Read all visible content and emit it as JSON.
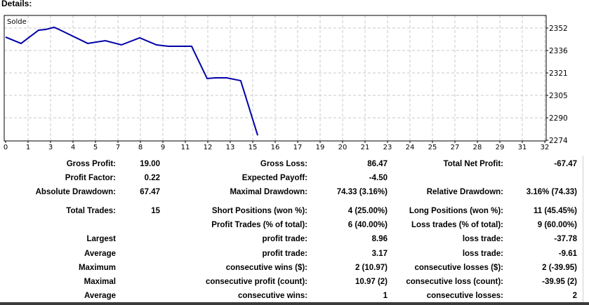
{
  "header": {
    "title": "Details:"
  },
  "chart_data": {
    "type": "line",
    "title": "Solde",
    "x_tick_labels": [
      "0",
      "1",
      "3",
      "4",
      "5",
      "7",
      "8",
      "9",
      "11",
      "12",
      "13",
      "15",
      "16",
      "17",
      "19",
      "20",
      "21",
      "23",
      "24",
      "25",
      "27",
      "28",
      "29",
      "31",
      "32"
    ],
    "y_tick_labels": [
      "2352",
      "2336",
      "2321",
      "2305",
      "2290",
      "2274"
    ],
    "xlim": [
      0,
      32
    ],
    "ylim": [
      2274,
      2352
    ],
    "grid": true,
    "series": [
      {
        "name": "Solde",
        "color": "#0000a8",
        "x": [
          0,
          0.92,
          1.96,
          2.38,
          2.88,
          3.09,
          4.89,
          5.93,
          6.89,
          7.98,
          8.98,
          9.69,
          11.07,
          11.99,
          12.49,
          13.16,
          13.99,
          15.0
        ],
        "y": [
          2345.7,
          2341.3,
          2350.5,
          2351,
          2352.5,
          2351.5,
          2341.3,
          2343.2,
          2340.3,
          2345.2,
          2340.3,
          2339.3,
          2339.3,
          2316.9,
          2317.4,
          2317.4,
          2315.4,
          2277.4
        ]
      }
    ]
  },
  "stats": [
    {
      "label": "Gross Profit:",
      "value": "19.00"
    },
    {
      "label": "Gross Loss:",
      "value": "86.47"
    },
    {
      "label": "Total Net Profit:",
      "value": "-67.47"
    },
    {
      "label": "Profit Factor:",
      "value": "0.22"
    },
    {
      "label": "Expected Payoff:",
      "value": "-4.50"
    },
    {
      "label": "Absolute Drawdown:",
      "value": "67.47"
    },
    {
      "label": "Maximal Drawdown:",
      "value": "74.33 (3.16%)"
    },
    {
      "label": "Relative Drawdown:",
      "value": "3.16% (74.33)"
    },
    {
      "label": "Total Trades:",
      "value": "15"
    },
    {
      "label": "Short Positions (won %):",
      "value": "4 (25.00%)"
    },
    {
      "label": "Long Positions (won %):",
      "value": "11 (45.45%)"
    },
    {
      "label": "Profit Trades (% of total):",
      "value": "6 (40.00%)"
    },
    {
      "label": "Loss trades (% of total):",
      "value": "9 (60.00%)"
    },
    {
      "label": "Largest"
    },
    {
      "label": "profit trade:",
      "value": "8.96"
    },
    {
      "label": "loss trade:",
      "value": "-37.78"
    },
    {
      "label": "Average"
    },
    {
      "label": "profit trade:",
      "value": "3.17"
    },
    {
      "label": "loss trade:",
      "value": "-9.61"
    },
    {
      "label": "Maximum"
    },
    {
      "label": "consecutive wins ($):",
      "value": "2 (10.97)"
    },
    {
      "label": "consecutive losses ($):",
      "value": "2 (-39.95)"
    },
    {
      "label": "Maximal"
    },
    {
      "label": "consecutive profit (count):",
      "value": "10.97 (2)"
    },
    {
      "label": "consecutive loss (count):",
      "value": "-39.95 (2)"
    },
    {
      "label": "Average"
    },
    {
      "label": "consecutive wins:",
      "value": "1"
    },
    {
      "label": "consecutive losses:",
      "value": "2"
    }
  ]
}
